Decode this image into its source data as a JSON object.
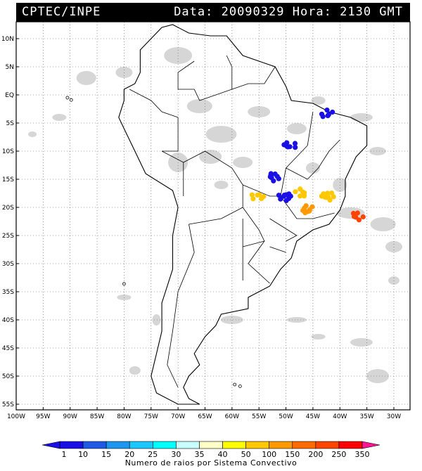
{
  "header": {
    "organization": "CPTEC/INPE",
    "timestamp": "Data: 20090329 Hora: 2130 GMT"
  },
  "map": {
    "lat_labels": [
      "10N",
      "5N",
      "EQ",
      "5S",
      "10S",
      "15S",
      "20S",
      "25S",
      "30S",
      "35S",
      "40S",
      "45S",
      "50S",
      "55S"
    ],
    "lat_values": [
      10,
      5,
      0,
      -5,
      -10,
      -15,
      -20,
      -25,
      -30,
      -35,
      -40,
      -45,
      -50,
      -55
    ],
    "lon_labels": [
      "100W",
      "95W",
      "90W",
      "85W",
      "80W",
      "75W",
      "70W",
      "65W",
      "60W",
      "55W",
      "50W",
      "45W",
      "40W",
      "35W",
      "30W"
    ],
    "lon_values": [
      -100,
      -95,
      -90,
      -85,
      -80,
      -75,
      -70,
      -65,
      -60,
      -55,
      -50,
      -45,
      -40,
      -35,
      -30
    ],
    "lon_range": [
      -100,
      -27
    ],
    "lat_range": [
      -56,
      13
    ],
    "grid": true,
    "cloud_color": "#c8c8c8",
    "storm_systems": [
      {
        "name": "system-ne-1",
        "lon": -42.5,
        "lat": -3.5,
        "rays": 5,
        "color": "#1a10e6"
      },
      {
        "name": "system-ne-2",
        "lon": -49.5,
        "lat": -9.0,
        "rays": 5,
        "color": "#1a10e6"
      },
      {
        "name": "system-c-1",
        "lon": -52.5,
        "lat": -14.5,
        "rays": 5,
        "color": "#1a10e6"
      },
      {
        "name": "system-c-2",
        "lon": -50.0,
        "lat": -18.0,
        "rays": 10,
        "color": "#1a10e6"
      },
      {
        "name": "system-mt",
        "lon": -55.0,
        "lat": -18.0,
        "rays": 100,
        "color": "#ffc800"
      },
      {
        "name": "system-mg",
        "lon": -47.0,
        "lat": -17.5,
        "rays": 100,
        "color": "#ffc800"
      },
      {
        "name": "system-sp",
        "lon": -46.0,
        "lat": -20.5,
        "rays": 150,
        "color": "#ff9900"
      },
      {
        "name": "system-es",
        "lon": -42.5,
        "lat": -18.0,
        "rays": 100,
        "color": "#ffc800"
      },
      {
        "name": "system-rj",
        "lon": -37.0,
        "lat": -21.5,
        "rays": 250,
        "color": "#ff4400"
      }
    ]
  },
  "legend": {
    "title": "Numero de raios por Sistema Convectivo",
    "labels": [
      "1",
      "10",
      "15",
      "20",
      "25",
      "30",
      "35",
      "40",
      "50",
      "100",
      "150",
      "200",
      "250",
      "350"
    ],
    "colors": [
      "#1a10e6",
      "#1a10e6",
      "#1e5ae6",
      "#1e96f0",
      "#19c8ff",
      "#00ffff",
      "#c8ffff",
      "#ffffc8",
      "#ffff00",
      "#ffc800",
      "#ff9900",
      "#ff6a00",
      "#ff4400",
      "#ff0000",
      "#ff1493"
    ]
  }
}
